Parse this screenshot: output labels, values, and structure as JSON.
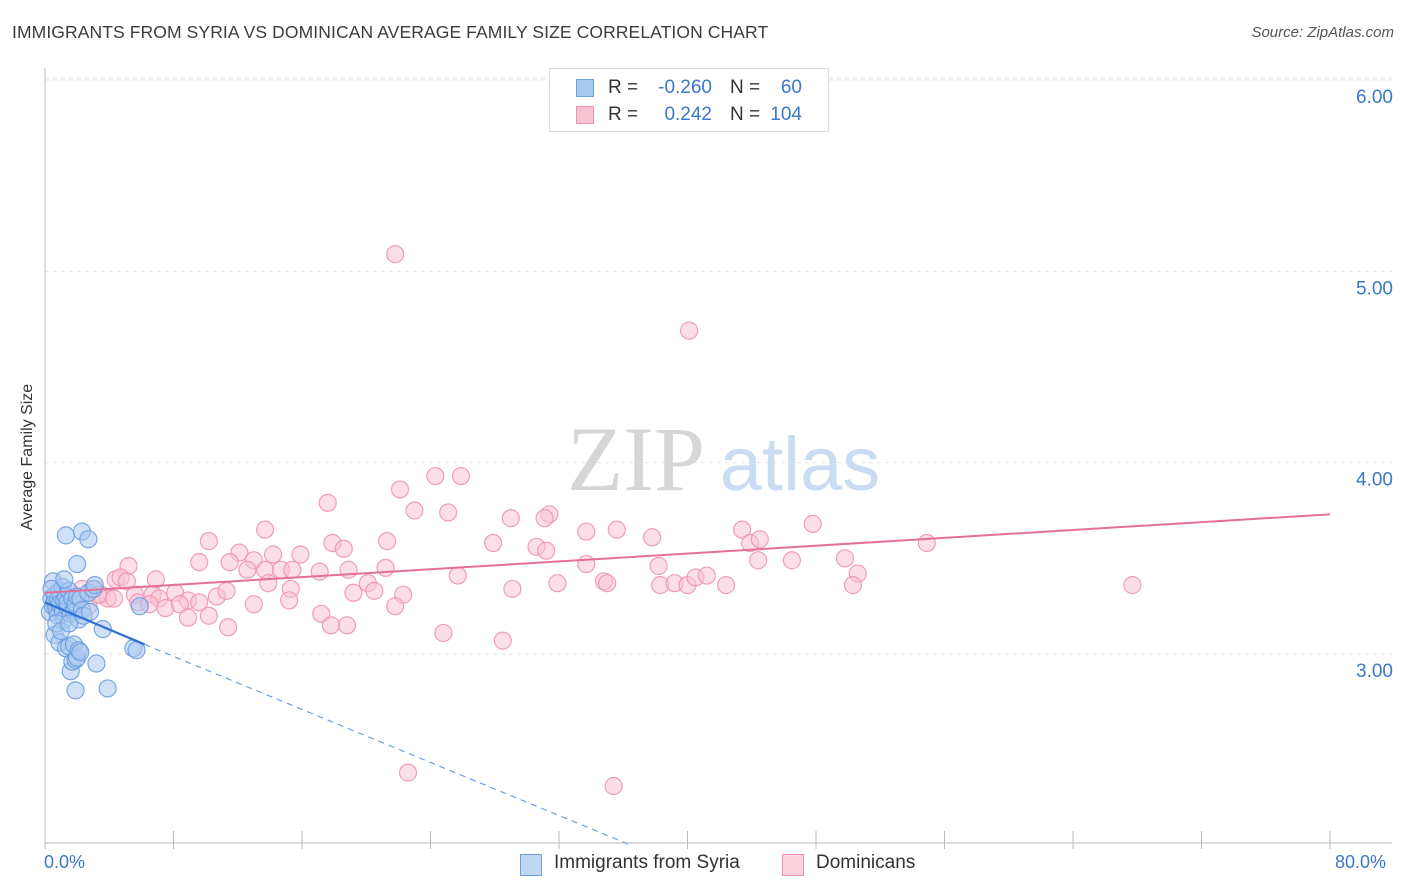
{
  "title": "IMMIGRANTS FROM SYRIA VS DOMINICAN AVERAGE FAMILY SIZE CORRELATION CHART",
  "source": "Source: ZipAtlas.com",
  "watermark": {
    "zip": "ZIP",
    "atlas": "atlas"
  },
  "legend": {
    "rows": [
      {
        "r_label": "R =",
        "r_value": "-0.260",
        "n_label": "N =",
        "n_value": "60",
        "color": "#a9c8f0",
        "border": "#6a9fe0"
      },
      {
        "r_label": "R =",
        "r_value": "0.242",
        "n_label": "N =",
        "n_value": "104",
        "color": "#f7c3d3",
        "border": "#ee93b1"
      }
    ]
  },
  "bottom_legend": {
    "syria": "Immigrants from Syria",
    "dominicans": "Dominicans"
  },
  "chart_data": {
    "type": "scatter",
    "ylabel": "Average Family Size",
    "xlabel": "",
    "x_tick_labels": {
      "left": "0.0%",
      "right": "80.0%"
    },
    "xlim": [
      0,
      80
    ],
    "ylim": [
      2.0,
      6.1
    ],
    "y_ticks": [
      3.0,
      4.0,
      5.0,
      6.0
    ],
    "y_tick_labels": [
      "3.00",
      "4.00",
      "5.00",
      "6.00"
    ],
    "grid": true,
    "legend_placement": "top-center",
    "series": [
      {
        "name": "Immigrants from Syria",
        "color": "#6a9fe0",
        "fill": "#a9c8f0",
        "trend": {
          "x": [
            0,
            6.2
          ],
          "y": [
            3.27,
            3.05
          ],
          "dashed_to": [
            36.5,
            2.0
          ]
        },
        "points": [
          [
            0.3,
            3.22
          ],
          [
            0.4,
            3.29
          ],
          [
            0.5,
            3.25
          ],
          [
            0.5,
            3.38
          ],
          [
            0.6,
            3.31
          ],
          [
            0.6,
            3.27
          ],
          [
            0.7,
            3.24
          ],
          [
            0.8,
            3.2
          ],
          [
            0.8,
            3.28
          ],
          [
            0.9,
            3.33
          ],
          [
            0.9,
            3.26
          ],
          [
            1.0,
            3.3
          ],
          [
            1.1,
            3.22
          ],
          [
            1.1,
            3.35
          ],
          [
            1.2,
            3.28
          ],
          [
            1.2,
            3.18
          ],
          [
            1.3,
            3.3
          ],
          [
            1.4,
            3.24
          ],
          [
            1.4,
            3.27
          ],
          [
            1.5,
            3.33
          ],
          [
            1.6,
            3.21
          ],
          [
            1.7,
            3.29
          ],
          [
            1.8,
            3.22
          ],
          [
            1.9,
            3.26
          ],
          [
            2.0,
            3.3
          ],
          [
            2.1,
            3.18
          ],
          [
            2.2,
            3.29
          ],
          [
            2.3,
            3.23
          ],
          [
            0.6,
            3.1
          ],
          [
            0.9,
            3.06
          ],
          [
            1.3,
            3.03
          ],
          [
            1.5,
            3.04
          ],
          [
            1.6,
            2.91
          ],
          [
            1.7,
            2.96
          ],
          [
            1.8,
            3.05
          ],
          [
            1.9,
            2.97
          ],
          [
            2.0,
            2.98
          ],
          [
            2.1,
            3.02
          ],
          [
            2.2,
            3.01
          ],
          [
            1.9,
            2.81
          ],
          [
            1.3,
            3.62
          ],
          [
            2.0,
            3.47
          ],
          [
            2.3,
            3.64
          ],
          [
            2.7,
            3.6
          ],
          [
            2.7,
            3.32
          ],
          [
            3.0,
            3.34
          ],
          [
            3.1,
            3.36
          ],
          [
            3.2,
            2.95
          ],
          [
            3.6,
            3.13
          ],
          [
            3.9,
            2.82
          ],
          [
            5.5,
            3.03
          ],
          [
            5.7,
            3.02
          ],
          [
            5.9,
            3.25
          ],
          [
            0.4,
            3.34
          ],
          [
            0.7,
            3.16
          ],
          [
            1.0,
            3.12
          ],
          [
            1.2,
            3.39
          ],
          [
            1.5,
            3.16
          ],
          [
            2.4,
            3.2
          ],
          [
            2.8,
            3.22
          ]
        ]
      },
      {
        "name": "Dominicans",
        "color": "#ee93b1",
        "fill": "#f7c3d3",
        "trend": {
          "x": [
            0,
            80
          ],
          "y": [
            3.32,
            3.73
          ]
        },
        "points": [
          [
            21.8,
            5.09
          ],
          [
            40.1,
            4.69
          ],
          [
            24.3,
            3.93
          ],
          [
            25.9,
            3.93
          ],
          [
            22.1,
            3.86
          ],
          [
            17.6,
            3.79
          ],
          [
            23.0,
            3.75
          ],
          [
            25.1,
            3.74
          ],
          [
            29.0,
            3.71
          ],
          [
            31.4,
            3.73
          ],
          [
            31.1,
            3.71
          ],
          [
            47.8,
            3.68
          ],
          [
            13.7,
            3.65
          ],
          [
            33.7,
            3.64
          ],
          [
            35.6,
            3.65
          ],
          [
            37.8,
            3.61
          ],
          [
            43.4,
            3.65
          ],
          [
            43.9,
            3.58
          ],
          [
            44.5,
            3.6
          ],
          [
            54.9,
            3.58
          ],
          [
            10.2,
            3.59
          ],
          [
            17.9,
            3.58
          ],
          [
            18.6,
            3.55
          ],
          [
            21.3,
            3.59
          ],
          [
            27.9,
            3.58
          ],
          [
            30.6,
            3.56
          ],
          [
            31.2,
            3.54
          ],
          [
            12.1,
            3.53
          ],
          [
            13.0,
            3.49
          ],
          [
            14.2,
            3.52
          ],
          [
            15.9,
            3.52
          ],
          [
            25.7,
            3.41
          ],
          [
            33.7,
            3.47
          ],
          [
            38.2,
            3.46
          ],
          [
            44.4,
            3.49
          ],
          [
            46.5,
            3.49
          ],
          [
            49.8,
            3.5
          ],
          [
            50.6,
            3.42
          ],
          [
            5.2,
            3.46
          ],
          [
            9.6,
            3.48
          ],
          [
            11.5,
            3.48
          ],
          [
            12.6,
            3.44
          ],
          [
            13.7,
            3.44
          ],
          [
            14.7,
            3.44
          ],
          [
            15.4,
            3.44
          ],
          [
            17.1,
            3.43
          ],
          [
            18.9,
            3.44
          ],
          [
            21.2,
            3.45
          ],
          [
            4.4,
            3.39
          ],
          [
            4.7,
            3.4
          ],
          [
            5.1,
            3.38
          ],
          [
            6.9,
            3.39
          ],
          [
            8.1,
            3.32
          ],
          [
            10.7,
            3.3
          ],
          [
            13.9,
            3.37
          ],
          [
            15.3,
            3.34
          ],
          [
            20.1,
            3.37
          ],
          [
            20.5,
            3.33
          ],
          [
            22.3,
            3.31
          ],
          [
            29.1,
            3.34
          ],
          [
            31.9,
            3.37
          ],
          [
            34.8,
            3.38
          ],
          [
            35.0,
            3.37
          ],
          [
            38.3,
            3.36
          ],
          [
            39.2,
            3.37
          ],
          [
            40.0,
            3.36
          ],
          [
            40.5,
            3.4
          ],
          [
            41.2,
            3.41
          ],
          [
            42.4,
            3.36
          ],
          [
            50.3,
            3.36
          ],
          [
            67.7,
            3.36
          ],
          [
            2.3,
            3.34
          ],
          [
            3.1,
            3.34
          ],
          [
            3.5,
            3.31
          ],
          [
            3.9,
            3.29
          ],
          [
            4.3,
            3.29
          ],
          [
            5.6,
            3.31
          ],
          [
            6.7,
            3.31
          ],
          [
            7.1,
            3.29
          ],
          [
            8.9,
            3.28
          ],
          [
            9.6,
            3.27
          ],
          [
            11.3,
            3.33
          ],
          [
            13.0,
            3.26
          ],
          [
            15.2,
            3.28
          ],
          [
            17.2,
            3.21
          ],
          [
            19.2,
            3.32
          ],
          [
            0.9,
            3.26
          ],
          [
            1.5,
            3.24
          ],
          [
            2.7,
            3.25
          ],
          [
            3.3,
            3.31
          ],
          [
            5.8,
            3.27
          ],
          [
            6.5,
            3.26
          ],
          [
            7.5,
            3.24
          ],
          [
            8.4,
            3.26
          ],
          [
            8.9,
            3.19
          ],
          [
            10.2,
            3.2
          ],
          [
            11.4,
            3.14
          ],
          [
            17.8,
            3.15
          ],
          [
            18.8,
            3.15
          ],
          [
            21.8,
            3.25
          ],
          [
            24.8,
            3.11
          ],
          [
            28.5,
            3.07
          ],
          [
            22.6,
            2.38
          ],
          [
            35.4,
            2.31
          ]
        ]
      }
    ]
  }
}
